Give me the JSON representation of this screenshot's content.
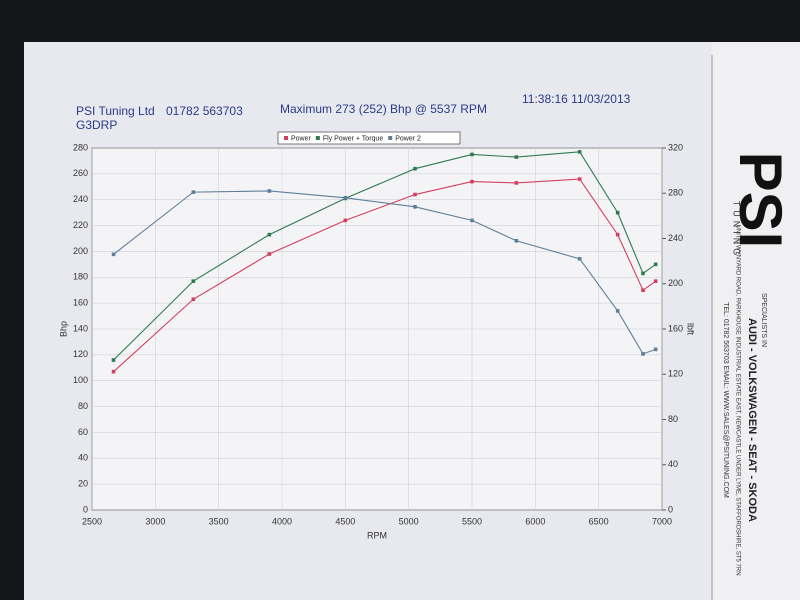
{
  "header": {
    "company": "PSI Tuning Ltd",
    "phone": "01782 563703",
    "code": "G3DRP",
    "summary": "Maximum 273 (252) Bhp @ 5537 RPM",
    "timestamp": "11:38:16 11/03/2013"
  },
  "sidebar": {
    "logo": "PSI",
    "logo_sub": "TUNING",
    "specialists": "SPECIALISTS IN",
    "makes": "AUDI - VOLKSWAGEN - SEAT - SKODA",
    "address": "UNIT 5 WYNYARD ROAD, PARKHOUSE INDUSTRIAL ESTATE EAST, NEWCASTLE UNDER LYME, STAFFORDSHIRE, ST5 7RN",
    "contact": "TEL: 01782 563703 EMAIL: WWW.SALES@PSITUNING.COM"
  },
  "chart_data": {
    "type": "line",
    "x_label": "RPM",
    "y_label": "Bhp",
    "y2_label": "lbft",
    "x": [
      2670,
      3300,
      3900,
      4500,
      5050,
      5500,
      5850,
      6350,
      6650,
      6850,
      6950
    ],
    "series": [
      {
        "name": "Power",
        "color": "#d2405e",
        "values": [
          107,
          163,
          198,
          224,
          244,
          254,
          253,
          256,
          213,
          170,
          177
        ]
      },
      {
        "name": "Fly Power + Torque",
        "color": "#2f7a4e",
        "values": [
          116,
          177,
          213,
          241,
          264,
          275,
          273,
          277,
          230,
          183,
          190
        ]
      },
      {
        "name": "Power 2",
        "color": "#5f7e98",
        "axis": "y2",
        "values": [
          226,
          281,
          282,
          276,
          268,
          256,
          238,
          222,
          176,
          138,
          142
        ]
      }
    ],
    "xlim": [
      2500,
      7000
    ],
    "xticks": [
      2500,
      3000,
      3500,
      4000,
      4500,
      5000,
      5500,
      6000,
      6500,
      7000
    ],
    "ylim": [
      0,
      280
    ],
    "yticks": [
      0,
      20,
      40,
      60,
      80,
      100,
      120,
      140,
      160,
      180,
      200,
      220,
      240,
      260,
      280
    ],
    "y2lim": [
      0,
      320
    ],
    "y2ticks": [
      0,
      40,
      80,
      120,
      160,
      200,
      240,
      280,
      320
    ],
    "grid": true
  }
}
